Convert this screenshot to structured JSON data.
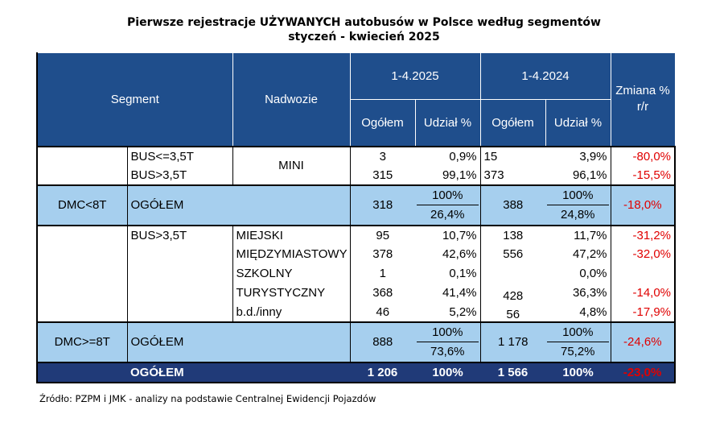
{
  "title": {
    "line1": "Pierwsze rejestracje UŻYWANYCH autobusów w Polsce według segmentów",
    "line2": "styczeń - kwiecień  2025"
  },
  "header": {
    "segment": "Segment",
    "nadwozie": "Nadwozie",
    "period_2025": "1-4.2025",
    "period_2024": "1-4.2024",
    "change": "Zmiana %",
    "change2": "r/r",
    "ogolem": "Ogółem",
    "udzial": "Udział %"
  },
  "rows": {
    "bus_le35_mini": {
      "sub": "BUS<=3,5T",
      "o25": "3",
      "u25": "0,9%",
      "o24": "15",
      "u24": "3,9%",
      "ch": "-80,0%"
    },
    "bus_gt35_mini": {
      "sub": "BUS>3,5T",
      "o25": "315",
      "u25": "99,1%",
      "o24": "373",
      "u24": "96,1%",
      "ch": "-15,5%"
    },
    "mini_label": "MINI",
    "dmc_lt8": {
      "segment": "DMC<8T",
      "label": "OGÓŁEM",
      "o25": "318",
      "u25_top": "100%",
      "u25_bot": "26,4%",
      "o24": "388",
      "u24_top": "100%",
      "u24_bot": "24,8%",
      "ch": "-18,0%"
    },
    "big_sub": "BUS>3,5T",
    "miejski": {
      "nad": "MIEJSKI",
      "o25": "95",
      "u25": "10,7%",
      "o24": "138",
      "u24": "11,7%",
      "ch": "-31,2%"
    },
    "miedzymiastowy": {
      "nad": "MIĘDZYMIASTOWY",
      "o25": "378",
      "u25": "42,6%",
      "o24": "556",
      "u24": "47,2%",
      "ch": "-32,0%"
    },
    "szkolny": {
      "nad": "SZKOLNY",
      "o25": "1",
      "u25": "0,1%",
      "o24": "",
      "u24": "0,0%",
      "ch": ""
    },
    "turystyczny": {
      "nad": "TURYSTYCZNY",
      "o25": "368",
      "u25": "41,4%",
      "o24": "428",
      "u24": "36,3%",
      "ch": "-14,0%"
    },
    "bd_inny": {
      "nad": "b.d./inny",
      "o25": "46",
      "u25": "5,2%",
      "o24": "56",
      "u24": "4,8%",
      "ch": "-17,9%"
    },
    "dmc_ge8": {
      "segment": "DMC>=8T",
      "label": "OGÓŁEM",
      "o25": "888",
      "u25_top": "100%",
      "u25_bot": "73,6%",
      "o24": "1 178",
      "u24_top": "100%",
      "u24_bot": "75,2%",
      "ch": "-24,6%"
    },
    "total": {
      "label": "OGÓŁEM",
      "o25": "1 206",
      "u25": "100%",
      "o24": "1 566",
      "u24": "100%",
      "ch": "-23,0%"
    }
  },
  "source": "Źródło: PZPM i JMK - analizy na podstawie Centralnej Ewidencji Pojazdów"
}
